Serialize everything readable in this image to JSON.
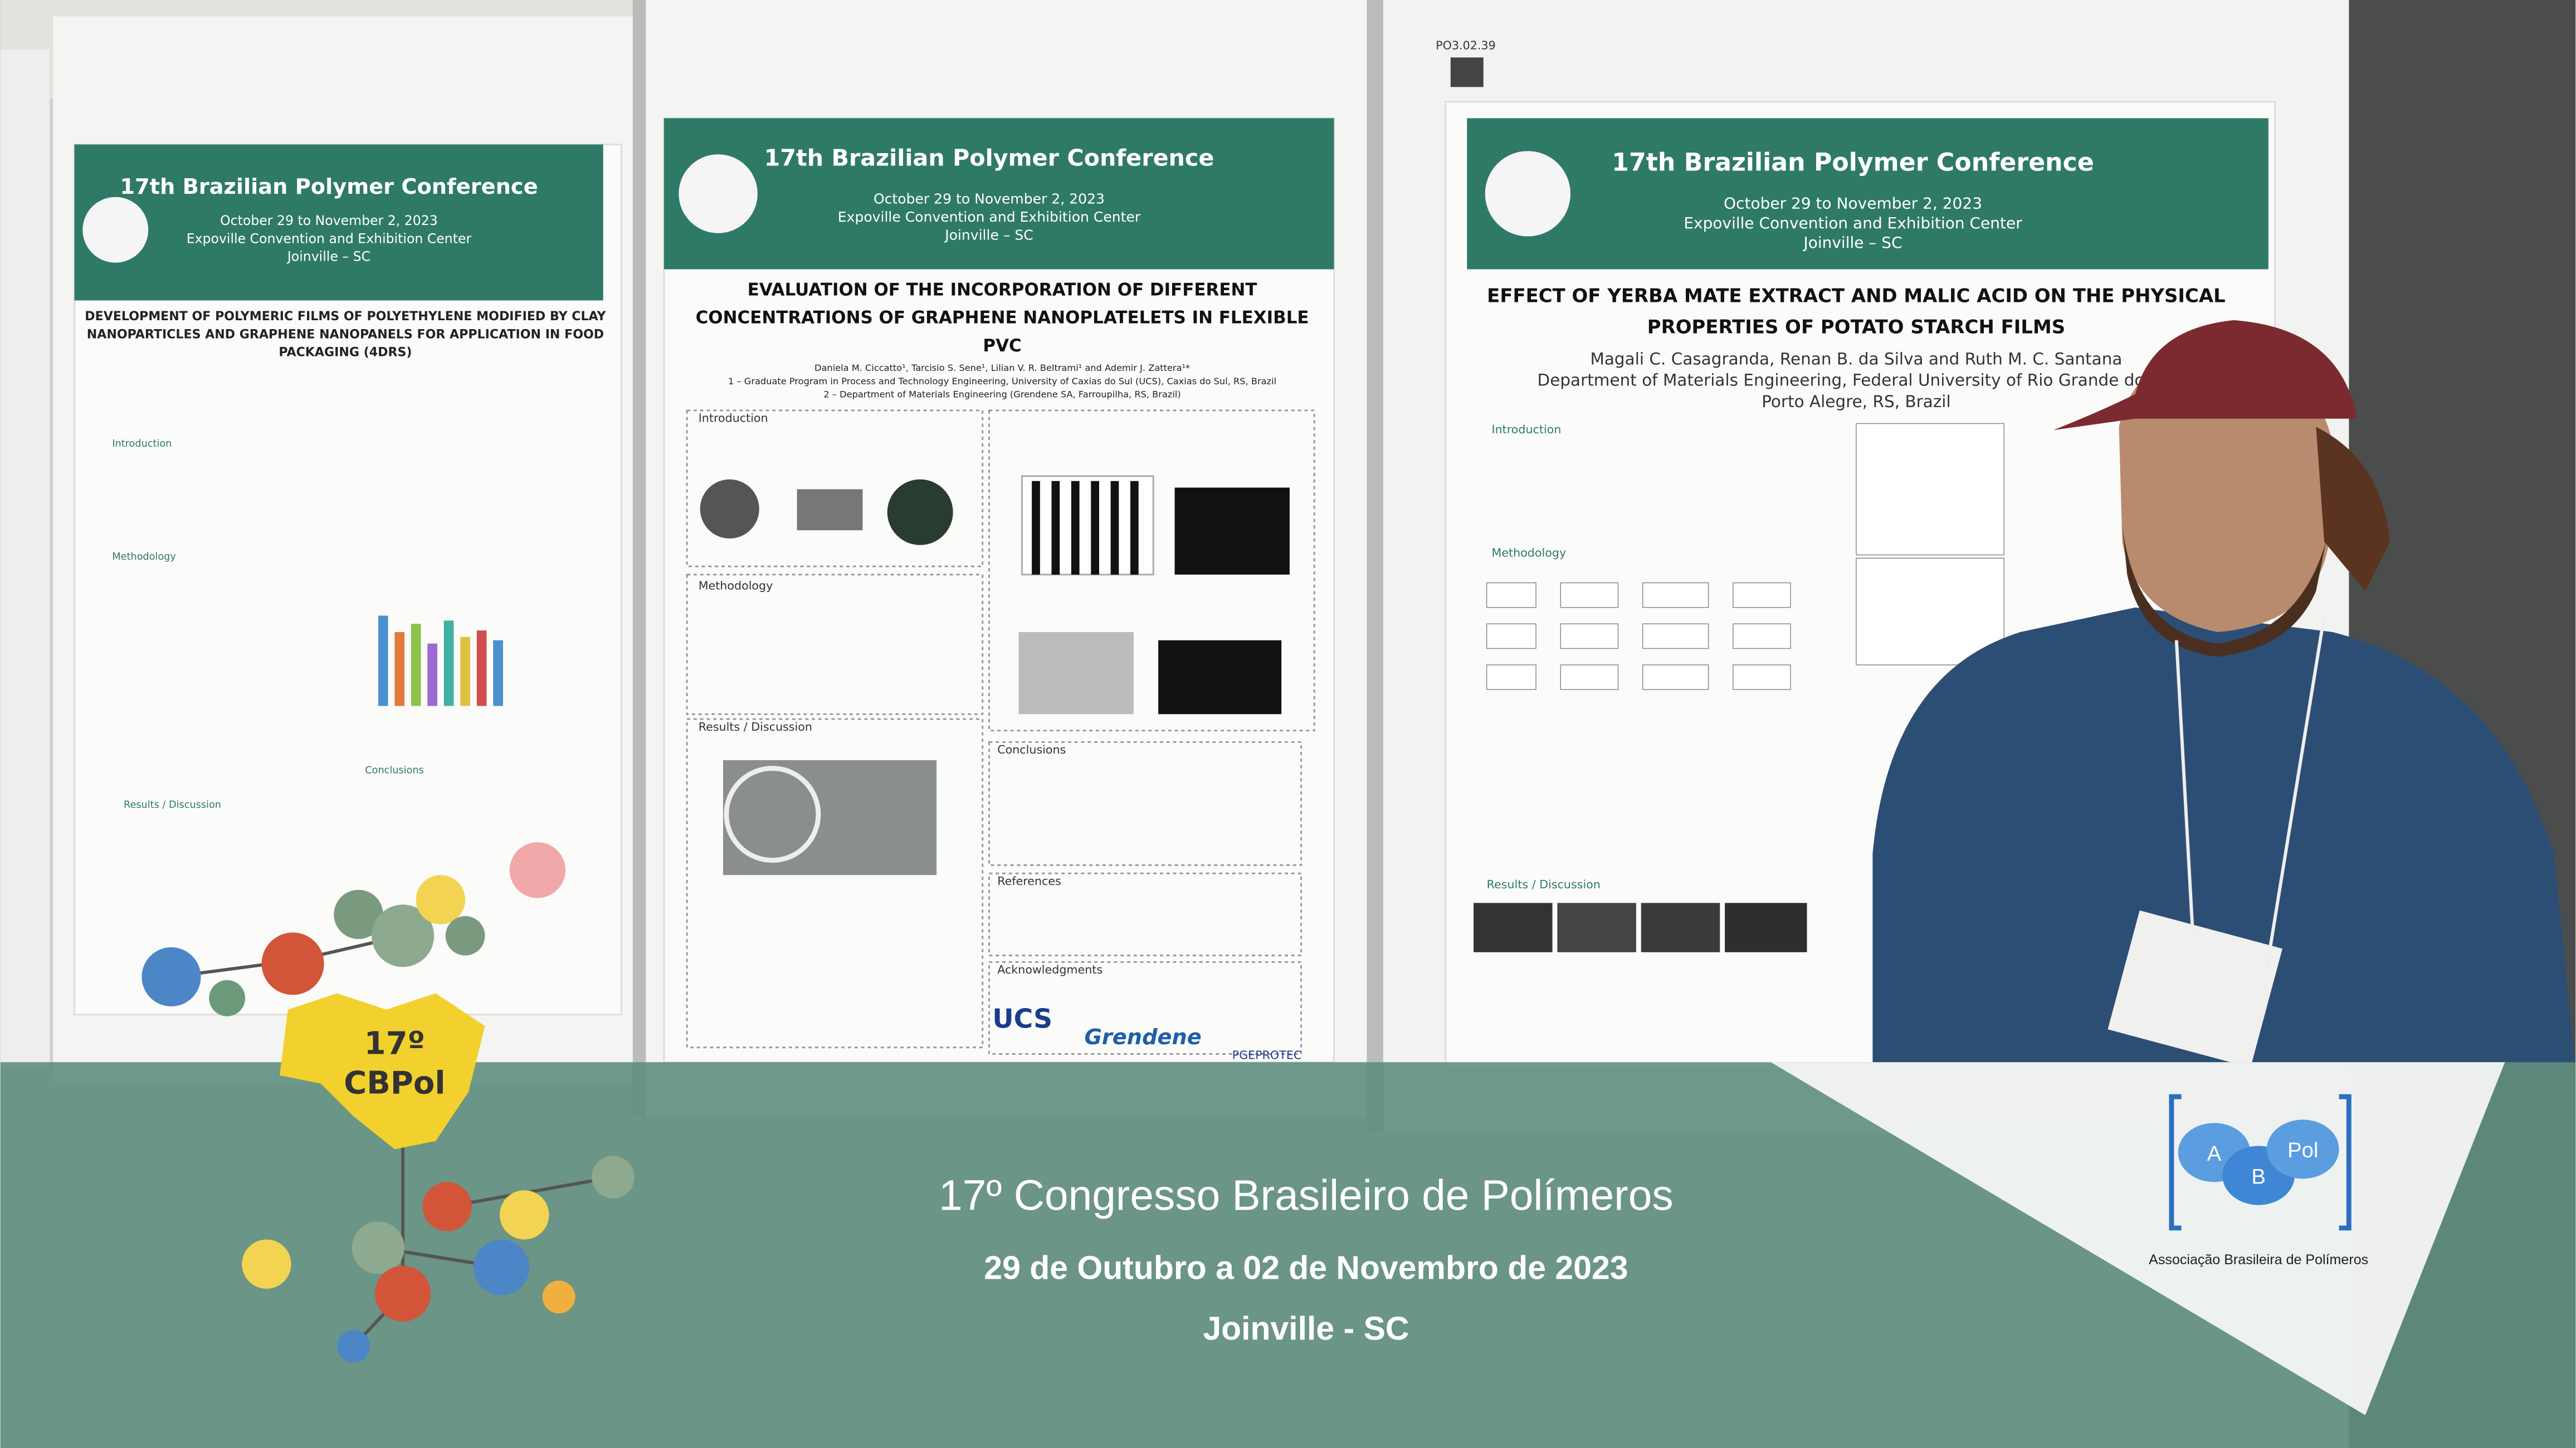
{
  "posters": [
    {
      "conference": "17th Brazilian Polymer Conference",
      "dates": "October 29 to November 2, 2023",
      "venue": "Expoville Convention and Exhibition Center",
      "city": "Joinville – SC",
      "title": [
        "DEVELOPMENT OF POLYMERIC FILMS OF POLYETHYLENE MODIFIED BY CLAY",
        "NANOPARTICLES AND GRAPHENE NANOPANELS FOR APPLICATION IN FOOD",
        "PACKAGING (4DRS)"
      ],
      "sections": [
        "Introduction",
        "Methodology",
        "Results / Discussion",
        "Conclusions"
      ]
    },
    {
      "conference": "17th Brazilian Polymer Conference",
      "dates": "October 29 to November 2, 2023",
      "venue": "Expoville Convention and Exhibition Center",
      "city": "Joinville – SC",
      "title": [
        "EVALUATION OF THE INCORPORATION OF DIFFERENT",
        "CONCENTRATIONS OF GRAPHENE NANOPLATELETS IN FLEXIBLE",
        "PVC"
      ],
      "authors": [
        "Daniela M. Ciccatto¹, Tarcisio S. Sene¹, Lilian V. R. Beltrami¹ and Ademir J. Zattera¹*",
        "1 – Graduate Program in Process and Technology Engineering, University of Caxias do Sul (UCS), Caxias do Sul, RS, Brazil",
        "2 – Department of Materials Engineering (Grendene SA, Farroupilha, RS, Brazil)"
      ],
      "sections": [
        "Introduction",
        "Methodology",
        "Results / Discussion",
        "Conclusions",
        "References",
        "Acknowledgments"
      ],
      "sponsors": [
        "UCS",
        "Grendene",
        "PGEPROTEC"
      ]
    },
    {
      "code": "PO3.02.39",
      "conference": "17th Brazilian Polymer Conference",
      "dates": "October 29 to November 2, 2023",
      "venue": "Expoville Convention and Exhibition Center",
      "city": "Joinville – SC",
      "title": [
        "EFFECT OF YERBA MATE EXTRACT AND MALIC ACID ON THE PHYSICAL",
        "PROPERTIES OF POTATO STARCH FILMS"
      ],
      "authors": [
        "Magali C. Casagranda, Renan B. da Silva and Ruth M. C. Santana",
        "Department of Materials Engineering, Federal University of Rio Grande do Sul",
        "Porto Alegre, RS, Brazil"
      ],
      "sections": [
        "Introduction",
        "Methodology",
        "Results / Discussion"
      ]
    }
  ],
  "overlay": {
    "event_name": "17º Congresso Brasileiro de Polímeros",
    "dates": "29 de Outubro a 02 de Novembro de 2023",
    "location": "Joinville - SC",
    "logo": [
      "17º",
      "CBPol"
    ],
    "association_logo": [
      "A",
      "B",
      "Pol"
    ],
    "association": "Associação Brasileira de Polímeros"
  }
}
